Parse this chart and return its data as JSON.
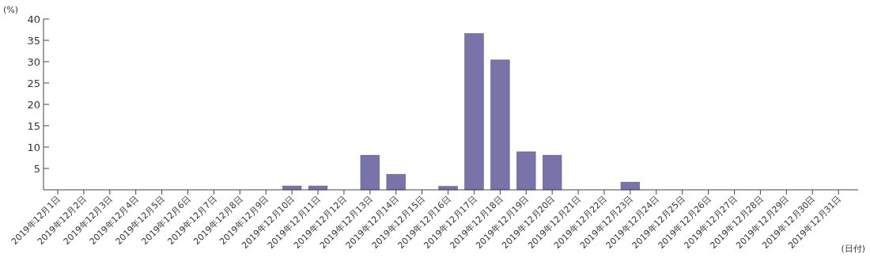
{
  "chart_data": {
    "type": "bar",
    "ylabel": "(%)",
    "xlabel": "(日付)",
    "categories": [
      "2019年12月1日",
      "2019年12月2日",
      "2019年12月3日",
      "2019年12月4日",
      "2019年12月5日",
      "2019年12月6日",
      "2019年12月7日",
      "2019年12月8日",
      "2019年12月9日",
      "2019年12月10日",
      "2019年12月11日",
      "2019年12月12日",
      "2019年12月13日",
      "2019年12月14日",
      "2019年12月15日",
      "2019年12月16日",
      "2019年12月17日",
      "2019年12月18日",
      "2019年12月19日",
      "2019年12月20日",
      "2019年12月21日",
      "2019年12月22日",
      "2019年12月23日",
      "2019年12月24日",
      "2019年12月25日",
      "2019年12月26日",
      "2019年12月27日",
      "2019年12月28日",
      "2019年12月29日",
      "2019年12月30日",
      "2019年12月31日"
    ],
    "values": [
      0,
      0,
      0,
      0,
      0,
      0,
      0,
      0,
      0,
      0.9,
      0.9,
      0,
      8.1,
      3.6,
      0,
      0.8,
      36.6,
      30.4,
      8.9,
      8.1,
      0,
      0,
      1.8,
      0,
      0,
      0,
      0,
      0,
      0,
      0,
      0
    ],
    "color": "#7874aa",
    "ylim": [
      0,
      40
    ],
    "yticks": [
      5,
      10,
      15,
      20,
      25,
      30,
      35,
      40
    ],
    "grid": false
  }
}
